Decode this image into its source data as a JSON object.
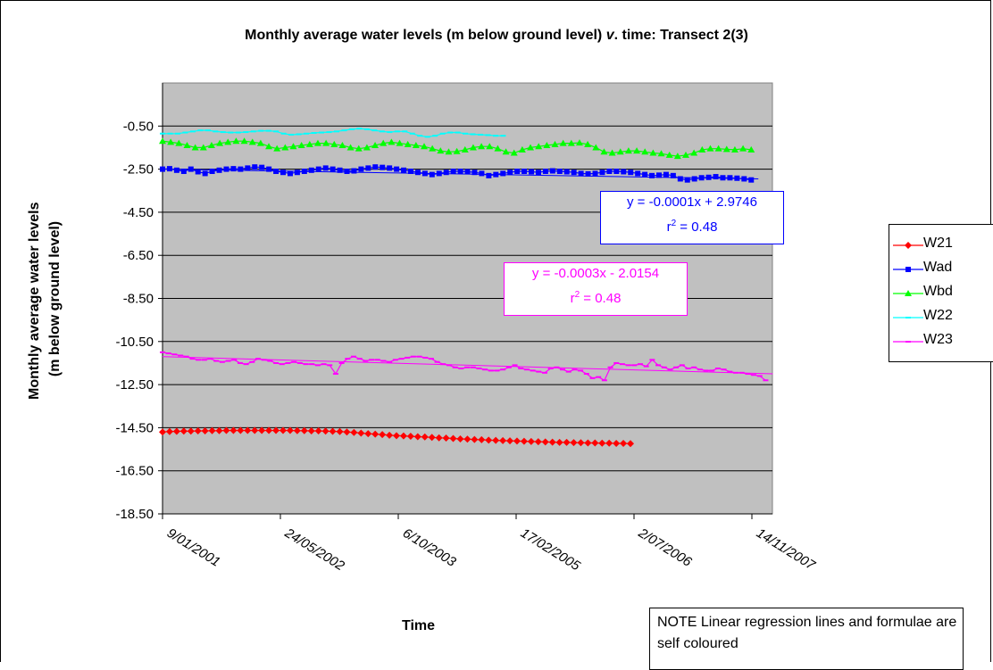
{
  "chart_data": {
    "type": "line",
    "title": "Monthly average water levels (m below ground level) v. time: Transect 2(3)",
    "title_parts": [
      "Monthly average water levels (m below ground level) ",
      "v",
      ". time: Transect 2(3)"
    ],
    "xlabel": "Time",
    "ylabel_lines": [
      "Monthly average water levels",
      "(m below ground level)"
    ],
    "ylim": [
      -18.5,
      1.5
    ],
    "yticks": [
      "-0.50",
      "-2.50",
      "-4.50",
      "-6.50",
      "-8.50",
      "-10.50",
      "-12.50",
      "-14.50",
      "-16.50",
      "-18.50"
    ],
    "xticks": [
      "9/01/2001",
      "24/05/2002",
      "6/10/2003",
      "17/02/2005",
      "2/07/2006",
      "14/11/2007"
    ],
    "x_range_dates": [
      "2001-01-01",
      "2008-03-01"
    ],
    "plot_background": "#c0c0c0",
    "grid": "horizontal",
    "legend_position": "right",
    "series": [
      {
        "name": "W21",
        "color": "#ff0000",
        "marker": "diamond",
        "x_start": "2001-01-01",
        "x_end": "2006-07-01",
        "values": [
          -14.7,
          -14.68,
          -14.67,
          -14.66,
          -14.66,
          -14.65,
          -14.65,
          -14.64,
          -14.64,
          -14.63,
          -14.63,
          -14.63,
          -14.63,
          -14.63,
          -14.63,
          -14.63,
          -14.63,
          -14.63,
          -14.63,
          -14.64,
          -14.64,
          -14.65,
          -14.65,
          -14.66,
          -14.67,
          -14.68,
          -14.7,
          -14.72,
          -14.75,
          -14.78,
          -14.8,
          -14.82,
          -14.85,
          -14.87,
          -14.88,
          -14.9,
          -14.92,
          -14.93,
          -14.95,
          -14.97,
          -14.98,
          -15.0,
          -15.02,
          -15.03,
          -15.05,
          -15.06,
          -15.08,
          -15.09,
          -15.1,
          -15.11,
          -15.12,
          -15.13,
          -15.14,
          -15.15,
          -15.16,
          -15.17,
          -15.18,
          -15.18,
          -15.19,
          -15.2,
          -15.21,
          -15.21,
          -15.22,
          -15.22,
          -15.23,
          -15.23,
          -15.24
        ]
      },
      {
        "name": "Wad",
        "color": "#0000ff",
        "marker": "square",
        "x_start": "2001-01-01",
        "x_end": "2007-12-01",
        "values": [
          -2.5,
          -2.48,
          -2.55,
          -2.6,
          -2.5,
          -2.62,
          -2.7,
          -2.6,
          -2.55,
          -2.5,
          -2.48,
          -2.5,
          -2.45,
          -2.4,
          -2.42,
          -2.5,
          -2.6,
          -2.65,
          -2.7,
          -2.65,
          -2.6,
          -2.55,
          -2.5,
          -2.45,
          -2.5,
          -2.55,
          -2.6,
          -2.58,
          -2.5,
          -2.45,
          -2.4,
          -2.42,
          -2.45,
          -2.5,
          -2.55,
          -2.6,
          -2.65,
          -2.7,
          -2.75,
          -2.7,
          -2.65,
          -2.6,
          -2.6,
          -2.62,
          -2.65,
          -2.7,
          -2.8,
          -2.75,
          -2.7,
          -2.65,
          -2.6,
          -2.6,
          -2.62,
          -2.65,
          -2.6,
          -2.58,
          -2.6,
          -2.62,
          -2.65,
          -2.7,
          -2.72,
          -2.7,
          -2.65,
          -2.6,
          -2.6,
          -2.62,
          -2.65,
          -2.7,
          -2.75,
          -2.8,
          -2.78,
          -2.75,
          -2.8,
          -2.95,
          -3.0,
          -2.95,
          -2.9,
          -2.88,
          -2.85,
          -2.9,
          -2.9,
          -2.92,
          -2.95,
          -3.0
        ]
      },
      {
        "name": "Wbd",
        "color": "#00ff00",
        "marker": "triangle",
        "x_start": "2001-01-01",
        "x_end": "2007-12-01",
        "values": [
          -1.2,
          -1.25,
          -1.3,
          -1.4,
          -1.5,
          -1.5,
          -1.4,
          -1.3,
          -1.25,
          -1.2,
          -1.2,
          -1.25,
          -1.3,
          -1.45,
          -1.55,
          -1.5,
          -1.45,
          -1.4,
          -1.35,
          -1.3,
          -1.3,
          -1.35,
          -1.4,
          -1.5,
          -1.55,
          -1.5,
          -1.4,
          -1.3,
          -1.25,
          -1.3,
          -1.35,
          -1.4,
          -1.45,
          -1.55,
          -1.65,
          -1.7,
          -1.68,
          -1.6,
          -1.5,
          -1.45,
          -1.45,
          -1.55,
          -1.7,
          -1.75,
          -1.6,
          -1.5,
          -1.45,
          -1.4,
          -1.35,
          -1.3,
          -1.3,
          -1.28,
          -1.35,
          -1.5,
          -1.7,
          -1.75,
          -1.7,
          -1.65,
          -1.65,
          -1.7,
          -1.75,
          -1.78,
          -1.85,
          -1.9,
          -1.85,
          -1.75,
          -1.6,
          -1.55,
          -1.55,
          -1.58,
          -1.6,
          -1.55,
          -1.6
        ]
      },
      {
        "name": "W22",
        "color": "#00ffff",
        "marker": "dash",
        "x_start": "2001-01-01",
        "x_end": "2005-01-01",
        "values": [
          -0.85,
          -0.85,
          -0.85,
          -0.8,
          -0.75,
          -0.7,
          -0.7,
          -0.75,
          -0.78,
          -0.8,
          -0.8,
          -0.78,
          -0.75,
          -0.72,
          -0.72,
          -0.75,
          -0.85,
          -0.9,
          -0.88,
          -0.85,
          -0.82,
          -0.8,
          -0.78,
          -0.75,
          -0.7,
          -0.65,
          -0.62,
          -0.65,
          -0.7,
          -0.75,
          -0.78,
          -0.75,
          -0.75,
          -0.85,
          -0.95,
          -1.0,
          -0.95,
          -0.85,
          -0.8,
          -0.8,
          -0.85,
          -0.88,
          -0.9,
          -0.92,
          -0.95,
          -0.95
        ]
      },
      {
        "name": "W23",
        "color": "#ff00ff",
        "marker": "dash",
        "x_start": "2001-01-01",
        "x_end": "2008-02-01",
        "values": [
          -11.0,
          -11.05,
          -11.1,
          -11.15,
          -11.2,
          -11.3,
          -11.35,
          -11.35,
          -11.3,
          -11.4,
          -11.45,
          -11.4,
          -11.35,
          -11.5,
          -11.55,
          -11.45,
          -11.3,
          -11.35,
          -11.4,
          -11.5,
          -11.55,
          -11.5,
          -11.45,
          -11.5,
          -11.55,
          -11.55,
          -11.6,
          -11.55,
          -11.6,
          -12.0,
          -11.5,
          -11.3,
          -11.2,
          -11.3,
          -11.4,
          -11.35,
          -11.35,
          -11.4,
          -11.45,
          -11.35,
          -11.3,
          -11.25,
          -11.2,
          -11.2,
          -11.25,
          -11.3,
          -11.45,
          -11.55,
          -11.6,
          -11.7,
          -11.75,
          -11.7,
          -11.7,
          -11.75,
          -11.8,
          -11.85,
          -11.85,
          -11.8,
          -11.7,
          -11.6,
          -11.75,
          -11.8,
          -11.85,
          -11.9,
          -11.95,
          -11.75,
          -11.7,
          -11.8,
          -11.9,
          -11.8,
          -11.85,
          -12.0,
          -12.2,
          -12.15,
          -12.3,
          -11.7,
          -11.5,
          -11.55,
          -11.6,
          -11.6,
          -11.55,
          -11.65,
          -11.35,
          -11.6,
          -11.7,
          -11.8,
          -11.7,
          -11.6,
          -11.75,
          -11.7,
          -11.8,
          -11.85,
          -11.85,
          -11.75,
          -11.8,
          -11.9,
          -11.95,
          -11.95,
          -12.0,
          -12.05,
          -12.1,
          -12.3
        ]
      }
    ],
    "trendlines": [
      {
        "series": "Wad",
        "color": "#0000ff",
        "from_value": -2.5,
        "to_value": -2.95,
        "equation": "y = -0.0001x + 2.9746",
        "r2_label": "r",
        "r2_sup": "2",
        "r2_value": " = 0.48"
      },
      {
        "series": "W23",
        "color": "#ff00ff",
        "from_value": -11.2,
        "to_value": -12.0,
        "equation": "y = -0.0003x - 2.0154",
        "r2_label": "r",
        "r2_sup": "2",
        "r2_value": " = 0.48"
      }
    ]
  },
  "note_text": "NOTE Linear regression lines and formulae are self coloured"
}
